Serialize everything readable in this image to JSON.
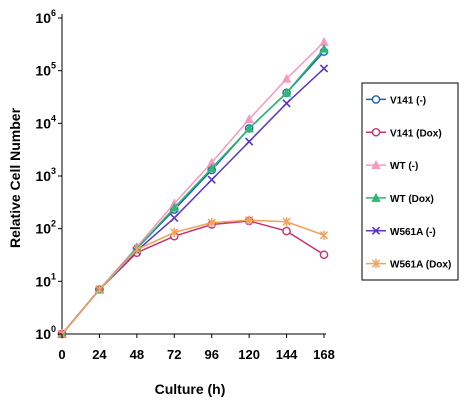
{
  "chart_data": {
    "type": "line",
    "title": "",
    "xlabel": "Culture (h)",
    "ylabel": "Relative Cell Number",
    "x": [
      0,
      24,
      48,
      72,
      96,
      120,
      144,
      168
    ],
    "xlim": [
      0,
      168
    ],
    "ylim": [
      1,
      1000000
    ],
    "y_scale": "log",
    "y_ticks": [
      {
        "base": "10",
        "exp": "0"
      },
      {
        "base": "10",
        "exp": "1"
      },
      {
        "base": "10",
        "exp": "2"
      },
      {
        "base": "10",
        "exp": "3"
      },
      {
        "base": "10",
        "exp": "4"
      },
      {
        "base": "10",
        "exp": "5"
      },
      {
        "base": "10",
        "exp": "6"
      }
    ],
    "x_ticks": [
      "0",
      "24",
      "48",
      "72",
      "96",
      "120",
      "144",
      "168"
    ],
    "grid": false,
    "legend_position": "right",
    "series": [
      {
        "name": "V141 (-)",
        "color": "#1f5fb4",
        "marker": "circle",
        "values": [
          1,
          7,
          42,
          230,
          1300,
          8000,
          38000,
          230000
        ]
      },
      {
        "name": "V141 (Dox)",
        "color": "#c8326e",
        "marker": "circle",
        "values": [
          1,
          7,
          35,
          72,
          120,
          140,
          90,
          32
        ]
      },
      {
        "name": "WT (-)",
        "color": "#f49ac0",
        "marker": "triangle",
        "values": [
          1,
          7,
          45,
          300,
          1800,
          12000,
          70000,
          350000
        ]
      },
      {
        "name": "WT (Dox)",
        "color": "#2eb872",
        "marker": "triangle",
        "values": [
          1,
          7,
          42,
          250,
          1400,
          8000,
          38000,
          260000
        ]
      },
      {
        "name": "W561A (-)",
        "color": "#5a36c8",
        "marker": "x",
        "values": [
          1,
          7,
          38,
          160,
          850,
          4500,
          24000,
          110000
        ]
      },
      {
        "name": "W561A (Dox)",
        "color": "#f2a25c",
        "marker": "star",
        "values": [
          1,
          7,
          40,
          85,
          130,
          145,
          135,
          75
        ]
      }
    ]
  }
}
